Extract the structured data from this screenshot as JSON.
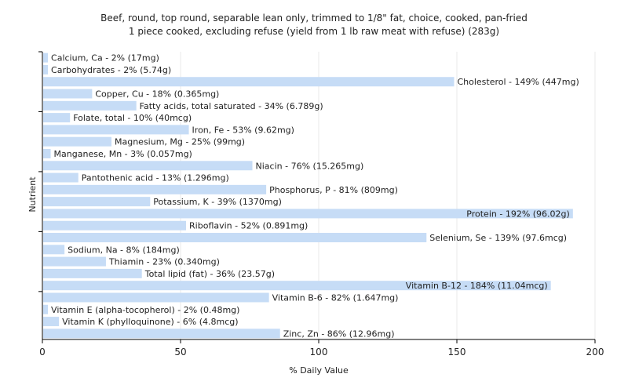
{
  "chart_data": {
    "type": "bar",
    "orientation": "horizontal",
    "title": "Beef, round, top round, separable lean only, trimmed to 1/8\" fat, choice, cooked, pan-fried",
    "subtitle": "1 piece cooked, excluding refuse (yield from 1 lb raw meat with refuse) (283g)",
    "xlabel": "% Daily Value",
    "ylabel": "Nutrient",
    "xlim": [
      0,
      200
    ],
    "xticks": [
      0,
      50,
      100,
      150,
      200
    ],
    "grid": "vertical",
    "bar_color": "#c6dcf6",
    "categories": [
      "Calcium, Ca",
      "Carbohydrates",
      "Cholesterol",
      "Copper, Cu",
      "Fatty acids, total saturated",
      "Folate, total",
      "Iron, Fe",
      "Magnesium, Mg",
      "Manganese, Mn",
      "Niacin",
      "Pantothenic acid",
      "Phosphorus, P",
      "Potassium, K",
      "Protein",
      "Riboflavin",
      "Selenium, Se",
      "Sodium, Na",
      "Thiamin",
      "Total lipid (fat)",
      "Vitamin B-12",
      "Vitamin B-6",
      "Vitamin E (alpha-tocopherol)",
      "Vitamin K (phylloquinone)",
      "Zinc, Zn"
    ],
    "values": [
      2,
      2,
      149,
      18,
      34,
      10,
      53,
      25,
      3,
      76,
      13,
      81,
      39,
      192,
      52,
      139,
      8,
      23,
      36,
      184,
      82,
      2,
      6,
      86
    ],
    "labels": [
      "Calcium, Ca - 2% (17mg)",
      "Carbohydrates - 2% (5.74g)",
      "Cholesterol - 149% (447mg)",
      "Copper, Cu - 18% (0.365mg)",
      "Fatty acids, total saturated - 34% (6.789g)",
      "Folate, total - 10% (40mcg)",
      "Iron, Fe - 53% (9.62mg)",
      "Magnesium, Mg - 25% (99mg)",
      "Manganese, Mn - 3% (0.057mg)",
      "Niacin - 76% (15.265mg)",
      "Pantothenic acid - 13% (1.296mg)",
      "Phosphorus, P - 81% (809mg)",
      "Potassium, K - 39% (1370mg)",
      "Protein - 192% (96.02g)",
      "Riboflavin - 52% (0.891mg)",
      "Selenium, Se - 139% (97.6mcg)",
      "Sodium, Na - 8% (184mg)",
      "Thiamin - 23% (0.340mg)",
      "Total lipid (fat) - 36% (23.57g)",
      "Vitamin B-12 - 184% (11.04mcg)",
      "Vitamin B-6 - 82% (1.647mg)",
      "Vitamin E (alpha-tocopherol) - 2% (0.48mg)",
      "Vitamin K (phylloquinone) - 6% (4.8mcg)",
      "Zinc, Zn - 86% (12.96mg)"
    ]
  }
}
